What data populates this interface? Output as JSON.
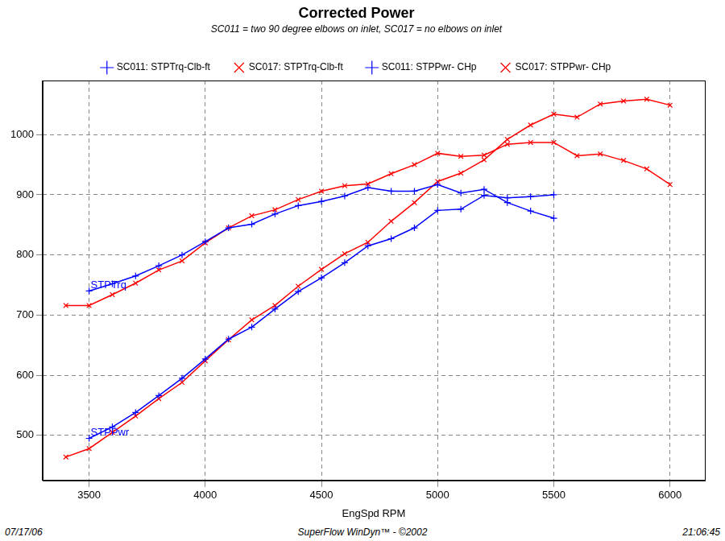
{
  "chart_data": {
    "type": "line",
    "title": "Corrected Power",
    "subtitle": "SC011 = two 90 degree elbows on inlet, SC017 = no elbows on inlet",
    "x_label": "EngSpd RPM",
    "x": [
      3400,
      3500,
      3600,
      3700,
      3800,
      3900,
      4000,
      4100,
      4200,
      4300,
      4400,
      4500,
      4600,
      4700,
      4800,
      4900,
      5000,
      5100,
      5200,
      5300,
      5400,
      5500,
      5600,
      5700,
      5800,
      5900,
      6000
    ],
    "series": [
      {
        "name": "SC011: STPTrq-Clb-ft",
        "color": "#0000ff",
        "marker": "plus",
        "line_style": "solid",
        "values": [
          null,
          740,
          752,
          765,
          782,
          800,
          822,
          845,
          851,
          868,
          882,
          889,
          898,
          912,
          906,
          906,
          917,
          903,
          909,
          887,
          873,
          861,
          null,
          null,
          null,
          null,
          null
        ]
      },
      {
        "name": "SC017: STPTrq-Clb-ft",
        "color": "#ff0000",
        "marker": "x",
        "line_style": "solid",
        "values": [
          716,
          716,
          734,
          753,
          775,
          790,
          820,
          845,
          865,
          875,
          892,
          906,
          915,
          918,
          935,
          950,
          969,
          964,
          966,
          984,
          987,
          987,
          965,
          968,
          957,
          943,
          917
        ]
      },
      {
        "name": "SC011: STPPwr- CHp",
        "color": "#0000ff",
        "marker": "plus",
        "line_style": "solid",
        "values": [
          null,
          495,
          514,
          538,
          566,
          595,
          627,
          660,
          680,
          710,
          739,
          762,
          787,
          815,
          827,
          845,
          874,
          876,
          899,
          895,
          897,
          900,
          null,
          null,
          null,
          null,
          null
        ]
      },
      {
        "name": "SC017: STPPwr- CHp",
        "color": "#ff0000",
        "marker": "x",
        "line_style": "solid",
        "values": [
          464,
          478,
          505,
          532,
          561,
          588,
          624,
          659,
          692,
          716,
          748,
          776,
          802,
          821,
          856,
          887,
          922,
          936,
          958,
          992,
          1016,
          1034,
          1029,
          1051,
          1056,
          1059,
          1049
        ]
      }
    ],
    "annotations": [
      {
        "text": "STPTrq",
        "series": "SC011: STPTrq-Clb-ft",
        "color": "#0000ff"
      },
      {
        "text": "STPPwr",
        "series": "SC011: STPPwr- CHp",
        "color": "#0000ff"
      }
    ],
    "footer": [
      "07/17/06",
      "SuperFlow WinDyn™ - ©2002",
      "21:06:45"
    ],
    "xlim": [
      3300,
      6150
    ],
    "xticks": [
      3500,
      4000,
      4500,
      5000,
      5500,
      6000
    ],
    "ylim": [
      425,
      1090
    ],
    "yticks": [
      500,
      600,
      700,
      800,
      900,
      1000
    ],
    "grid": true,
    "legend": "top"
  }
}
